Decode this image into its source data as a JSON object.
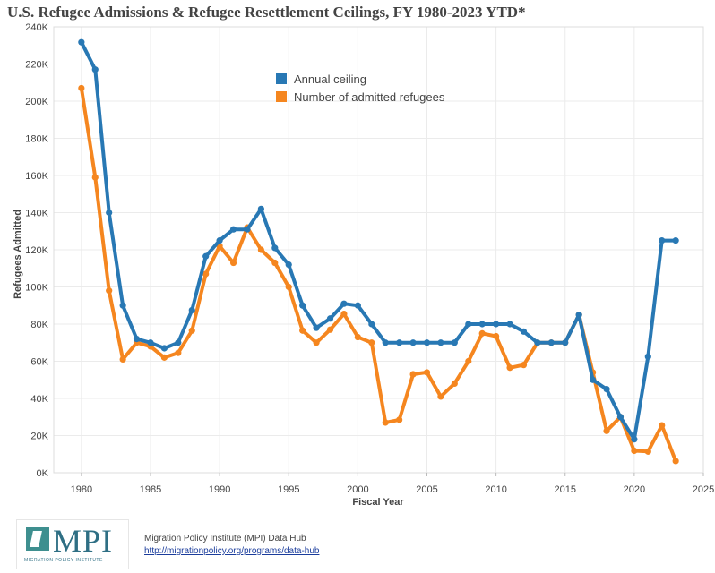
{
  "colors": {
    "ceiling": "#2878b4",
    "admitted": "#f5861f",
    "grid": "#ebebeb",
    "axis_text": "#444444"
  },
  "footer": {
    "logo_text": "MPI",
    "logo_subtext": "MIGRATION POLICY INSTITUTE",
    "source_name": "Migration Policy Institute (MPI) Data Hub",
    "source_url": "http://migrationpolicy.org/programs/data-hub"
  },
  "chart_data": {
    "type": "line",
    "title": "U.S. Refugee Admissions & Refugee Resettlement Ceilings, FY 1980-2023 YTD*",
    "xlabel": "Fiscal Year",
    "ylabel": "Refugees Admitted",
    "xlim": [
      1978,
      2025
    ],
    "ylim": [
      0,
      240000
    ],
    "x_ticks": [
      1980,
      1985,
      1990,
      1995,
      2000,
      2005,
      2010,
      2015,
      2020,
      2025
    ],
    "x_tick_labels": [
      "1980",
      "1985",
      "1990",
      "1995",
      "2000",
      "2005",
      "2010",
      "2015",
      "2020",
      "2025"
    ],
    "y_ticks": [
      0,
      20000,
      40000,
      60000,
      80000,
      100000,
      120000,
      140000,
      160000,
      180000,
      200000,
      220000,
      240000
    ],
    "y_tick_labels": [
      "0K",
      "20K",
      "40K",
      "60K",
      "80K",
      "100K",
      "120K",
      "140K",
      "160K",
      "180K",
      "200K",
      "220K",
      "240K"
    ],
    "legend_position": "top-center",
    "grid": true,
    "x": [
      1980,
      1981,
      1982,
      1983,
      1984,
      1985,
      1986,
      1987,
      1988,
      1989,
      1990,
      1991,
      1992,
      1993,
      1994,
      1995,
      1996,
      1997,
      1998,
      1999,
      2000,
      2001,
      2002,
      2003,
      2004,
      2005,
      2006,
      2007,
      2008,
      2009,
      2010,
      2011,
      2012,
      2013,
      2014,
      2015,
      2016,
      2017,
      2018,
      2019,
      2020,
      2021,
      2022,
      2023
    ],
    "series": [
      {
        "name": "Annual ceiling",
        "color": "#2878b4",
        "values": [
          231700,
          217000,
          140000,
          90000,
          72000,
          70000,
          67000,
          70000,
          87500,
          116500,
          125000,
          131000,
          131000,
          142000,
          121000,
          112000,
          90000,
          78000,
          83000,
          91000,
          90000,
          80000,
          70000,
          70000,
          70000,
          70000,
          70000,
          70000,
          80000,
          80000,
          80000,
          80000,
          76000,
          70000,
          70000,
          70000,
          85000,
          50000,
          45000,
          30000,
          18000,
          62500,
          125000,
          125000
        ]
      },
      {
        "name": "Number of admitted refugees",
        "color": "#f5861f",
        "values": [
          207000,
          159000,
          98000,
          61000,
          70000,
          68000,
          62000,
          64500,
          76500,
          107000,
          122000,
          113000,
          132000,
          120000,
          113000,
          100000,
          76500,
          70000,
          77000,
          85500,
          73000,
          70000,
          27000,
          28500,
          53000,
          54000,
          41000,
          48000,
          60000,
          75000,
          73500,
          56500,
          58000,
          70000,
          70000,
          70000,
          85000,
          54000,
          22500,
          30000,
          11800,
          11400,
          25500,
          6300
        ]
      }
    ]
  }
}
